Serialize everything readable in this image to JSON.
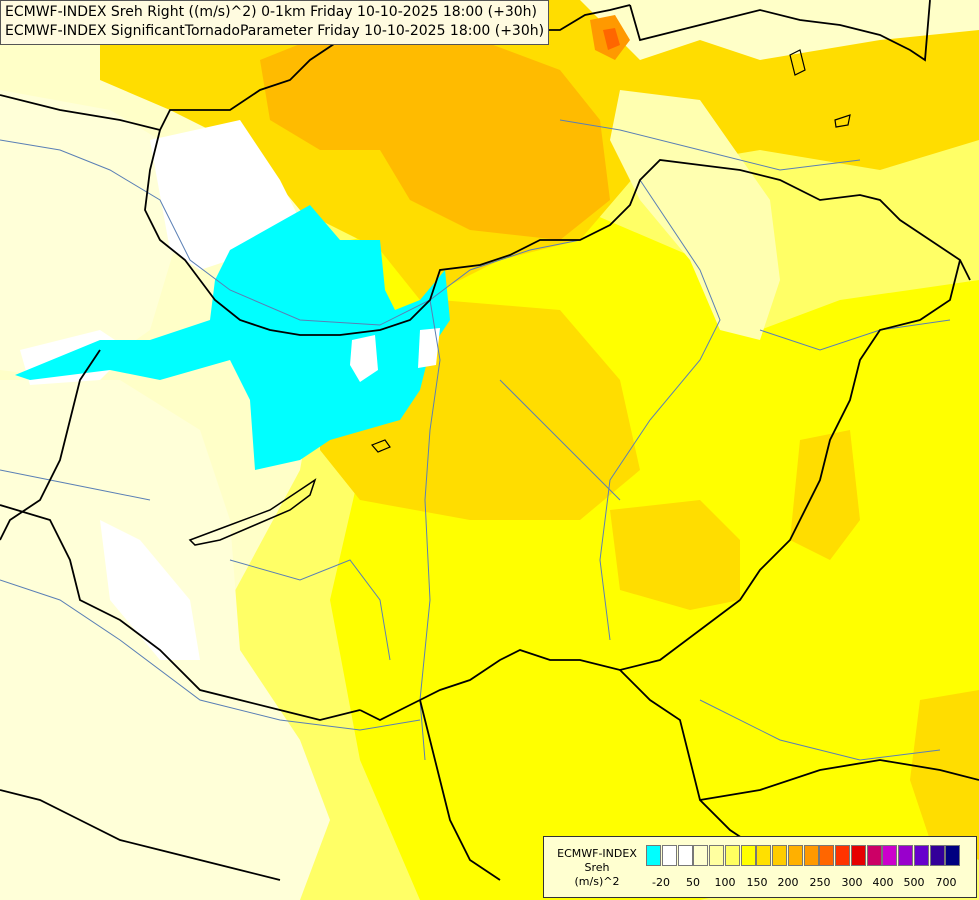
{
  "header": {
    "line1": "ECMWF-INDEX Sreh Right ((m/s)^2) 0-1km Friday 10-10-2025 18:00 (+30h)",
    "line2": "ECMWF-INDEX SignificantTornadoParameter Friday 10-10-2025 18:00 (+30h)"
  },
  "legend": {
    "title": "ECMWF-INDEX",
    "variable": "Sreh",
    "unit": "(m/s)^2",
    "colors": [
      "#00ffff",
      "#ffffff",
      "#ffffff",
      "#ffffd0",
      "#ffffa0",
      "#ffff60",
      "#ffff00",
      "#ffe000",
      "#ffcc00",
      "#ffb000",
      "#ff9900",
      "#ff6600",
      "#ff3300",
      "#e60000",
      "#cc0066",
      "#cc00cc",
      "#9900cc",
      "#6600cc",
      "#330099",
      "#000080"
    ],
    "ticks": [
      "-20",
      "50",
      "100",
      "150",
      "200",
      "250",
      "300",
      "400",
      "500",
      "700"
    ]
  },
  "map": {
    "highlight_color": "#00ffff",
    "background_color": "#ffffc8"
  }
}
